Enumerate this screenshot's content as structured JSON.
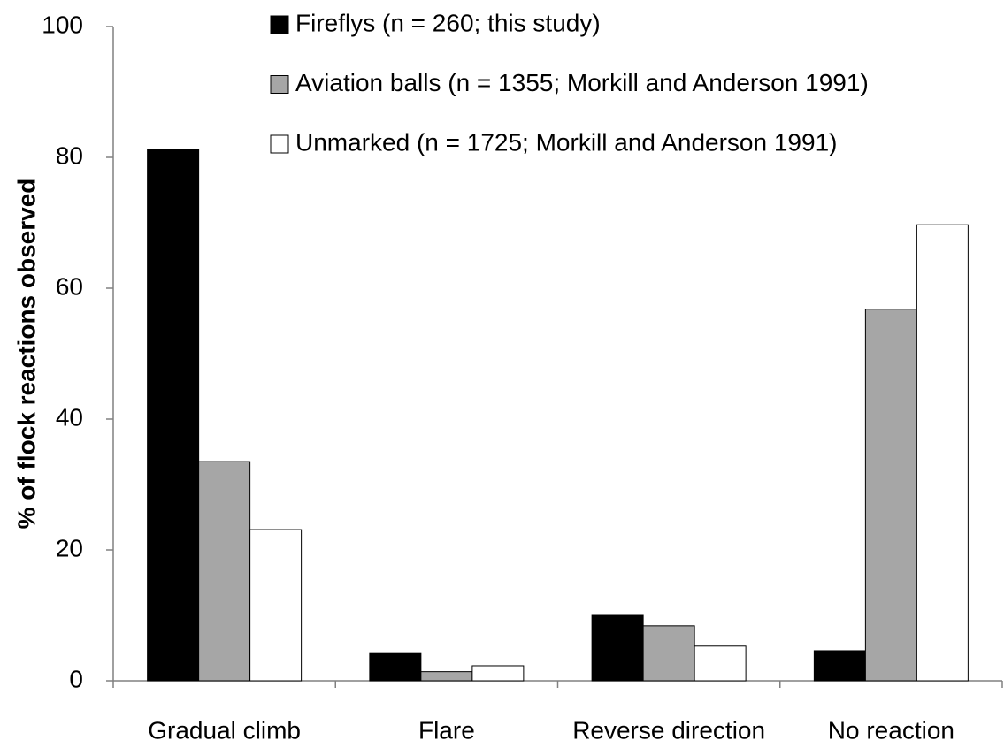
{
  "chart_data": {
    "type": "bar",
    "y_label": "% of flock reactions observed",
    "categories": [
      "Gradual climb",
      "Flare",
      "Reverse direction",
      "No reaction"
    ],
    "series": [
      {
        "name": "Fireflys (n = 260; this study)",
        "color": "#000000",
        "values": [
          81.2,
          4.3,
          10.0,
          4.6
        ]
      },
      {
        "name": "Aviation balls (n = 1355; Morkill and Anderson 1991)",
        "color": "#a6a6a6",
        "values": [
          33.5,
          1.4,
          8.4,
          56.8
        ]
      },
      {
        "name": "Unmarked (n = 1725; Morkill and Anderson 1991)",
        "color": "#ffffff",
        "values": [
          23.1,
          2.3,
          5.3,
          69.7
        ]
      }
    ],
    "ylim": [
      0,
      100
    ],
    "yticks": [
      0,
      20,
      40,
      60,
      80,
      100
    ],
    "legend": "upper center",
    "grid": false
  }
}
